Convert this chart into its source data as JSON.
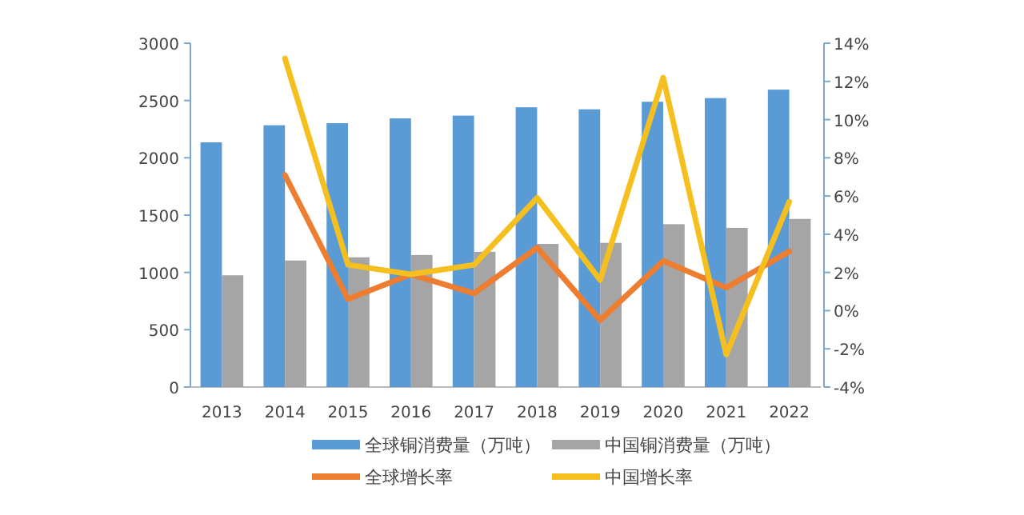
{
  "chart_data": {
    "type": "bar",
    "categories": [
      "2013",
      "2014",
      "2015",
      "2016",
      "2017",
      "2018",
      "2019",
      "2020",
      "2021",
      "2022"
    ],
    "series": [
      {
        "name": "全球铜消费量（万吨）",
        "color": "#5b9bd5",
        "values": [
          2135,
          2284,
          2302,
          2344,
          2368,
          2441,
          2423,
          2489,
          2521,
          2595
        ]
      },
      {
        "name": "中国铜消费量（万吨）",
        "color": "#a5a5a5",
        "values": [
          975,
          1104,
          1132,
          1152,
          1180,
          1249,
          1258,
          1421,
          1389,
          1467
        ]
      },
      {
        "name": "全球增长率",
        "type": "line",
        "axis": "y2",
        "color": "#ed7d31",
        "values": [
          null,
          7.1,
          0.6,
          1.9,
          0.9,
          3.3,
          -0.5,
          2.6,
          1.2,
          3.1
        ]
      },
      {
        "name": "中国增长率",
        "type": "line",
        "axis": "y2",
        "color": "#f5c01f",
        "values": [
          null,
          13.2,
          2.4,
          1.9,
          2.4,
          5.9,
          1.6,
          12.2,
          -2.3,
          5.7
        ]
      }
    ],
    "ylim": [
      0,
      3000
    ],
    "yticks": [
      0,
      500,
      1000,
      1500,
      2000,
      2500,
      3000
    ],
    "y2lim": [
      -4,
      14
    ],
    "y2ticks": [
      {
        "value": -4,
        "label": "-4%"
      },
      {
        "value": -2,
        "label": "-2%"
      },
      {
        "value": 0,
        "label": "0%"
      },
      {
        "value": 2,
        "label": "2%"
      },
      {
        "value": 4,
        "label": "4%"
      },
      {
        "value": 6,
        "label": "6%"
      },
      {
        "value": 8,
        "label": "8%"
      },
      {
        "value": 10,
        "label": "10%"
      },
      {
        "value": 12,
        "label": "12%"
      },
      {
        "value": 14,
        "label": "14%"
      }
    ],
    "grid": false,
    "legend": "bottom",
    "marker": "none",
    "line_style": "solid"
  }
}
